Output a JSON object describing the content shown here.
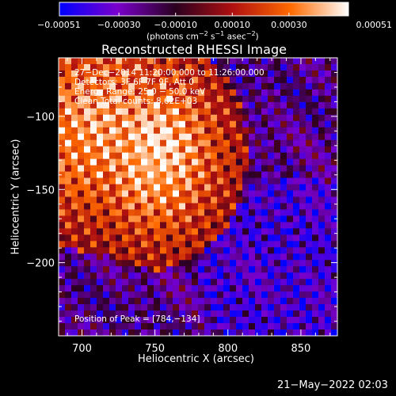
{
  "chart_data": {
    "type": "heatmap",
    "title": "Reconstructed RHESSI Image",
    "xlabel": "Heliocentric X (arcsec)",
    "ylabel": "Heliocentric Y (arcsec)",
    "xlim": [
      684,
      875
    ],
    "ylim": [
      -250,
      -60
    ],
    "xticks": [
      700,
      750,
      800,
      850
    ],
    "xtick_labels": [
      "700",
      "750",
      "800",
      "850"
    ],
    "yticks": [
      -100,
      -150,
      -200
    ],
    "ytick_labels": [
      "−100",
      "−150",
      "−200"
    ],
    "colorbar": {
      "range": [
        -0.00051,
        0.00051
      ],
      "ticks": [
        -0.00051,
        -0.0003,
        -0.0001,
        0.0001,
        0.0003,
        0.00051
      ],
      "tick_labels": [
        "−0.00051",
        "−0.00030",
        "−0.00010",
        "0.00010",
        "0.00030",
        "0.00051"
      ],
      "unit_label": "(photons cm",
      "unit_exp1": "−2",
      "unit_mid": " s",
      "unit_exp2": "−1",
      "unit_mid2": " asec",
      "unit_exp3": "−2",
      "unit_end": ")",
      "colors": [
        "#0000ff",
        "#7a00cc",
        "#2a0020",
        "#b01010",
        "#ff6a00",
        "#ffffff"
      ]
    },
    "info_lines": [
      "27−Dec−2014 11:20:00.000 to 11:26:00.000",
      "Detectors: 3F 6F 7F 9F, Att 0",
      "Energy Range: 25.0 − 50.0 keV",
      "Clean     Total counts: 8.62E+03"
    ],
    "peak_label": "Position of Peak = [784,−134]",
    "peak": [
      784,
      -134
    ],
    "timestamp": "21−May−2022 02:03"
  }
}
